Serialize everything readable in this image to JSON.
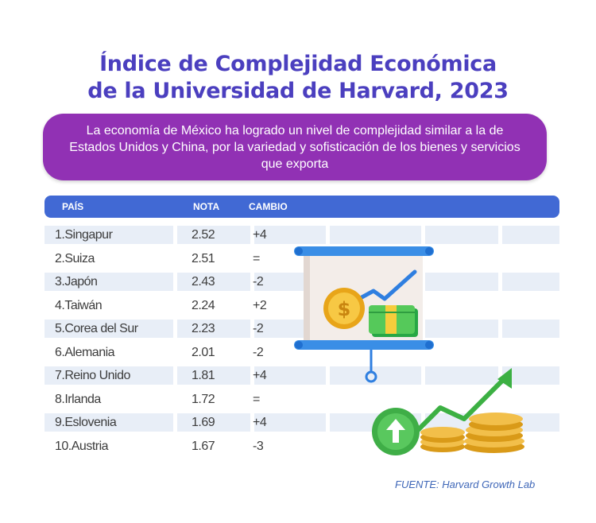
{
  "title_line1": "Índice de Complejidad Económica",
  "title_line2": "de la Universidad de Harvard, 2023",
  "subtitle": "La economía de México ha logrado un nivel de complejidad similar a la de Estados Unidos y China, por la variedad y sofisticación de los bienes y servicios que exporta",
  "source": "FUENTE: Harvard Growth Lab",
  "colors": {
    "title": "#4b3fbf",
    "banner": "#9131b4",
    "header": "#4169d4",
    "row_shade": "#e8eef7",
    "source": "#3f67b8"
  },
  "icons": [
    "presentation-board-icon",
    "dollar-coin-icon",
    "banknote-icon",
    "trend-up-arrow-icon",
    "coin-stack-icon",
    "up-arrow-circle-icon"
  ],
  "chart_data": {
    "type": "table",
    "columns": [
      "PAÍS",
      "NOTA",
      "CAMBIO"
    ],
    "rows": [
      {
        "pais": "1.Singapur",
        "nota": "2.52",
        "cambio": "+4"
      },
      {
        "pais": "2.Suiza",
        "nota": "2.51",
        "cambio": "="
      },
      {
        "pais": "3.Japón",
        "nota": "2.43",
        "cambio": "-2"
      },
      {
        "pais": "4.Taiwán",
        "nota": "2.24",
        "cambio": "+2"
      },
      {
        "pais": "5.Corea del Sur",
        "nota": "2.23",
        "cambio": "-2"
      },
      {
        "pais": "6.Alemania",
        "nota": "2.01",
        "cambio": "-2"
      },
      {
        "pais": "7.Reino Unido",
        "nota": "1.81",
        "cambio": "+4"
      },
      {
        "pais": "8.Irlanda",
        "nota": "1.72",
        "cambio": "="
      },
      {
        "pais": "9.Eslovenia",
        "nota": "1.69",
        "cambio": "+4"
      },
      {
        "pais": "10.Austria",
        "nota": "1.67",
        "cambio": "-3"
      }
    ]
  }
}
